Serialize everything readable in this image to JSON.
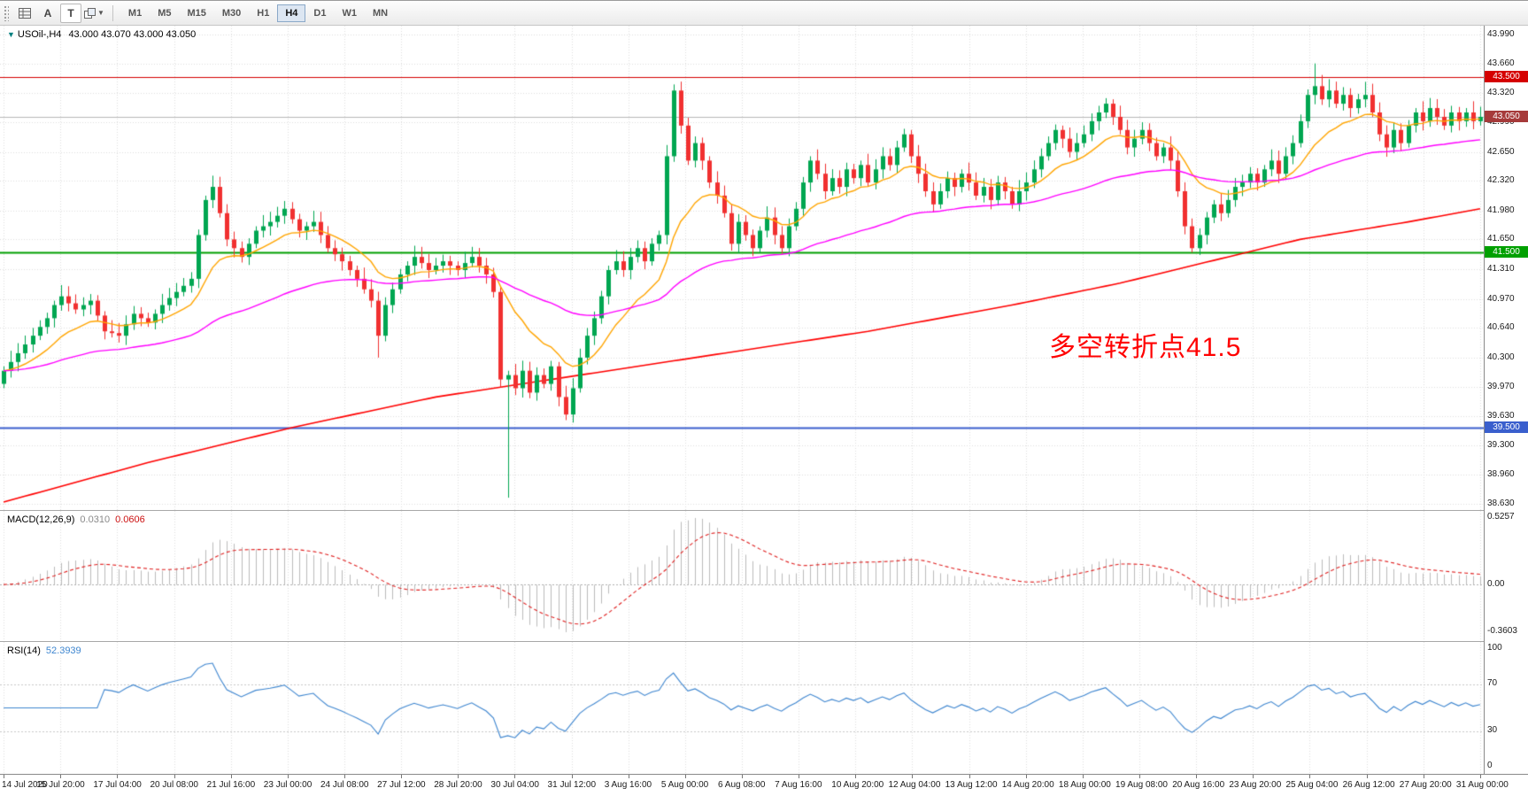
{
  "toolbar": {
    "buttons": [
      {
        "label": "A"
      },
      {
        "label": "T"
      }
    ],
    "timeframes": [
      "M1",
      "M5",
      "M15",
      "M30",
      "H1",
      "H4",
      "D1",
      "W1",
      "MN"
    ],
    "active_timeframe": "H4"
  },
  "chart": {
    "type": "candlestick",
    "symbol_title": "USOil-,H4",
    "ohlc": "43.000 43.070 43.000 43.050",
    "annotation": {
      "text": "多空转折点41.5",
      "color": "#ff0000"
    },
    "y_axis_labels": [
      "43.990",
      "43.660",
      "43.320",
      "42.990",
      "42.650",
      "42.320",
      "41.980",
      "41.650",
      "41.310",
      "40.970",
      "40.640",
      "40.300",
      "39.970",
      "39.630",
      "39.300",
      "38.960",
      "38.630"
    ],
    "y_max": 43.99,
    "y_min": 38.63,
    "hlines": [
      {
        "price": 43.5,
        "label": "43.500",
        "color": "#d50000",
        "width": 1
      },
      {
        "price": 41.5,
        "label": "41.500",
        "color": "#00a000",
        "width": 2
      },
      {
        "price": 39.5,
        "label": "39.500",
        "color": "#3a5fcd",
        "width": 2
      }
    ],
    "current_price": {
      "value": 43.05,
      "label": "43.050",
      "badge_color": "#a63a3a",
      "line_color": "#b8b8b8"
    },
    "colors": {
      "up": "#00a651",
      "down": "#f13030",
      "ma_fast": "#ffa500",
      "ma_mid": "#ff00ff",
      "ma_slow": "#ff0000",
      "grid": "#dedede"
    },
    "candles": {
      "first_open": 40.0,
      "closes": [
        40.15,
        40.25,
        40.35,
        40.45,
        40.55,
        40.65,
        40.75,
        40.9,
        41.0,
        40.92,
        40.85,
        40.9,
        40.95,
        40.78,
        40.6,
        40.58,
        40.55,
        40.68,
        40.8,
        40.75,
        40.7,
        40.8,
        40.9,
        40.98,
        41.05,
        41.12,
        41.2,
        41.7,
        42.1,
        42.25,
        41.95,
        41.65,
        41.55,
        41.45,
        41.6,
        41.75,
        41.8,
        41.85,
        41.92,
        42.0,
        41.88,
        41.75,
        41.8,
        41.85,
        41.7,
        41.55,
        41.48,
        41.4,
        41.3,
        41.2,
        41.08,
        40.95,
        40.55,
        40.9,
        41.08,
        41.25,
        41.35,
        41.45,
        41.38,
        41.3,
        41.35,
        41.4,
        41.35,
        41.3,
        41.38,
        41.45,
        41.35,
        41.25,
        41.05,
        40.05,
        40.1,
        39.95,
        40.15,
        39.9,
        40.1,
        40.0,
        40.2,
        39.85,
        39.65,
        39.95,
        40.3,
        40.55,
        40.75,
        41.0,
        41.3,
        41.4,
        41.3,
        41.45,
        41.55,
        41.4,
        41.6,
        41.7,
        42.6,
        43.35,
        42.95,
        42.55,
        42.75,
        42.55,
        42.3,
        42.15,
        41.95,
        41.6,
        41.85,
        41.7,
        41.55,
        41.75,
        41.9,
        41.7,
        41.55,
        41.8,
        42.0,
        42.3,
        42.55,
        42.4,
        42.2,
        42.35,
        42.25,
        42.45,
        42.35,
        42.5,
        42.3,
        42.45,
        42.6,
        42.5,
        42.7,
        42.85,
        42.6,
        42.4,
        42.2,
        42.05,
        42.2,
        42.35,
        42.25,
        42.4,
        42.3,
        42.15,
        42.25,
        42.1,
        42.3,
        42.2,
        42.05,
        42.2,
        42.3,
        42.45,
        42.6,
        42.75,
        42.9,
        42.8,
        42.65,
        42.75,
        42.85,
        43.0,
        43.1,
        43.2,
        43.05,
        42.9,
        42.7,
        42.8,
        42.9,
        42.75,
        42.6,
        42.7,
        42.55,
        42.2,
        41.8,
        41.55,
        41.7,
        41.9,
        42.05,
        41.95,
        42.1,
        42.25,
        42.3,
        42.4,
        42.3,
        42.45,
        42.55,
        42.4,
        42.6,
        42.75,
        43.0,
        43.3,
        43.4,
        43.25,
        43.35,
        43.2,
        43.3,
        43.15,
        43.25,
        43.3,
        43.1,
        42.85,
        42.7,
        42.9,
        42.75,
        42.95,
        43.1,
        43.0,
        43.15,
        43.05,
        42.95,
        43.1,
        43.0,
        43.1,
        43.0,
        43.05
      ],
      "wick_overrides": {
        "52": {
          "low": 40.3
        },
        "70": {
          "low": 38.7
        },
        "93": {
          "high": 43.42
        },
        "182": {
          "high": 43.66
        },
        "184": {
          "high": 43.48
        },
        "189": {
          "high": 43.45
        }
      }
    },
    "ma_slow_points": [
      [
        0,
        38.65
      ],
      [
        20,
        39.1
      ],
      [
        40,
        39.5
      ],
      [
        60,
        39.85
      ],
      [
        80,
        40.1
      ],
      [
        100,
        40.35
      ],
      [
        120,
        40.6
      ],
      [
        140,
        40.9
      ],
      [
        155,
        41.15
      ],
      [
        170,
        41.45
      ],
      [
        180,
        41.65
      ],
      [
        195,
        41.85
      ],
      [
        205,
        42.0
      ]
    ],
    "ma_fast_period": 13,
    "ma_mid_period": 55
  },
  "macd": {
    "label": "MACD(12,26,9)",
    "value_main": "0.0310",
    "value_signal": "0.0606",
    "y_labels": [
      "0.5257",
      "0.00",
      "-0.3603"
    ],
    "histogram_color": "#bbbbbb",
    "signal_color": "#e02020"
  },
  "rsi": {
    "label": "RSI(14)",
    "value": "52.3939",
    "levels": [
      100,
      70,
      30,
      0
    ],
    "level_labels": [
      "100",
      "70",
      "30",
      "0"
    ],
    "line_color": "#3e86d0"
  },
  "time_axis": {
    "labels": [
      "14 Jul 2020",
      "15 Jul 20:00",
      "17 Jul 04:00",
      "20 Jul 08:00",
      "21 Jul 16:00",
      "23 Jul 00:00",
      "24 Jul 08:00",
      "27 Jul 12:00",
      "28 Jul 20:00",
      "30 Jul 04:00",
      "31 Jul 12:00",
      "3 Aug 16:00",
      "5 Aug 00:00",
      "6 Aug 08:00",
      "7 Aug 16:00",
      "10 Aug 20:00",
      "12 Aug 04:00",
      "13 Aug 12:00",
      "14 Aug 20:00",
      "18 Aug 00:00",
      "19 Aug 08:00",
      "20 Aug 16:00",
      "23 Aug 20:00",
      "25 Aug 04:00",
      "26 Aug 12:00",
      "27 Aug 20:00",
      "31 Aug 00:00"
    ]
  }
}
